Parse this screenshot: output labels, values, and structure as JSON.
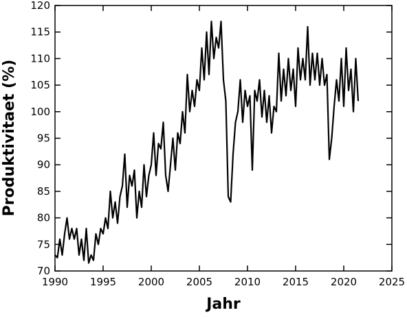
{
  "chart_data": {
    "type": "line",
    "xlabel": "Jahr",
    "ylabel": "Produktivitaet (%)",
    "x": [
      1990,
      1990.25,
      1990.5,
      1990.75,
      1991,
      1991.25,
      1991.5,
      1991.75,
      1992,
      1992.25,
      1992.5,
      1992.75,
      1993,
      1993.25,
      1993.5,
      1993.75,
      1994,
      1994.25,
      1994.5,
      1994.75,
      1995,
      1995.25,
      1995.5,
      1995.75,
      1996,
      1996.25,
      1996.5,
      1996.75,
      1997,
      1997.25,
      1997.5,
      1997.75,
      1998,
      1998.25,
      1998.5,
      1998.75,
      1999,
      1999.25,
      1999.5,
      1999.75,
      2000,
      2000.25,
      2000.5,
      2000.75,
      2001,
      2001.25,
      2001.5,
      2001.75,
      2002,
      2002.25,
      2002.5,
      2002.75,
      2003,
      2003.25,
      2003.5,
      2003.75,
      2004,
      2004.25,
      2004.5,
      2004.75,
      2005,
      2005.25,
      2005.5,
      2005.75,
      2006,
      2006.25,
      2006.5,
      2006.75,
      2007,
      2007.25,
      2007.5,
      2007.75,
      2008,
      2008.25,
      2008.5,
      2008.75,
      2009,
      2009.25,
      2009.5,
      2009.75,
      2010,
      2010.25,
      2010.5,
      2010.75,
      2011,
      2011.25,
      2011.5,
      2011.75,
      2012,
      2012.25,
      2012.5,
      2012.75,
      2013,
      2013.25,
      2013.5,
      2013.75,
      2014,
      2014.25,
      2014.5,
      2014.75,
      2015,
      2015.25,
      2015.5,
      2015.75,
      2016,
      2016.25,
      2016.5,
      2016.75,
      2017,
      2017.25,
      2017.5,
      2017.75,
      2018,
      2018.25,
      2018.5,
      2018.75,
      2019,
      2019.25,
      2019.5,
      2019.75,
      2020,
      2020.25,
      2020.5,
      2020.75,
      2021,
      2021.25,
      2021.5
    ],
    "series": [
      {
        "name": "Produktivitaet",
        "color": "#000000",
        "values": [
          73,
          72.5,
          76,
          73,
          77,
          80,
          76,
          78,
          76,
          78,
          73,
          76,
          72,
          78,
          71.5,
          73,
          72,
          77,
          75,
          78,
          77,
          80,
          78,
          85,
          80,
          83,
          79,
          84,
          86,
          92,
          82,
          88,
          86,
          89,
          80,
          85,
          82,
          90,
          84,
          88,
          90,
          96,
          88,
          94,
          93,
          98,
          88,
          85,
          90,
          95,
          89,
          96,
          94,
          100,
          96,
          107,
          100,
          104,
          101,
          106,
          104,
          112,
          106,
          115,
          107,
          117,
          110,
          114,
          112,
          117,
          106,
          102,
          84,
          83,
          92,
          98,
          100,
          106,
          98,
          104,
          101,
          103,
          89,
          104,
          102,
          106,
          99,
          104,
          98,
          103,
          96,
          101,
          100,
          111,
          102,
          108,
          103,
          110,
          104,
          108,
          101,
          112,
          106,
          110,
          106,
          116,
          105,
          111,
          106,
          111,
          105,
          110,
          105,
          107,
          91,
          95,
          101,
          106,
          102,
          110,
          101,
          112,
          104,
          108,
          100,
          110,
          102
        ]
      }
    ],
    "xlim": [
      1990,
      2025
    ],
    "xticks": [
      1990,
      1995,
      2000,
      2005,
      2010,
      2015,
      2020,
      2025
    ],
    "ylim": [
      70,
      120
    ],
    "yticks": [
      70,
      75,
      80,
      85,
      90,
      95,
      100,
      105,
      110,
      115,
      120
    ],
    "grid": false
  }
}
